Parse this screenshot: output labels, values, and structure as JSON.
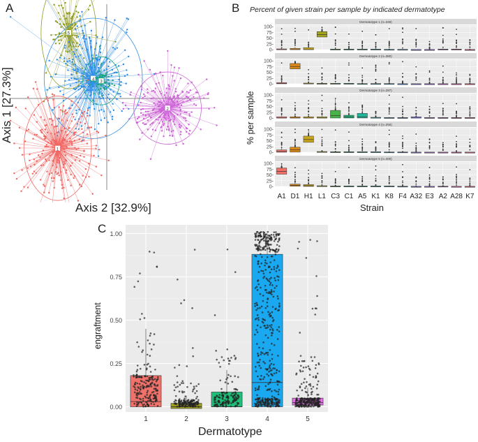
{
  "panels": {
    "a": {
      "letter": "A",
      "xlabel": "Axis 2 [32.9%]",
      "ylabel": "Axis 1 [27.3%]",
      "clusters": [
        {
          "id": "5",
          "color": "#8f9a1e"
        },
        {
          "id": "4",
          "color": "#2e8ee8"
        },
        {
          "id": "3",
          "color": "#1aa678"
        },
        {
          "id": "2",
          "color": "#cc5fd6"
        },
        {
          "id": "1",
          "color": "#ef6460"
        }
      ]
    },
    "b": {
      "letter": "B",
      "title": "Percent of given strain per sample by indicated dermatotype",
      "ylabel": "% per sample",
      "xlabel": "Strain",
      "yticks": [
        "100-",
        "75-",
        "50-",
        "25-",
        "0-"
      ]
    },
    "c": {
      "letter": "C",
      "ylabel": "engraftment",
      "xlabel": "Dermatotype"
    }
  },
  "chart_data": [
    {
      "type": "scatter",
      "xlabel": "Axis 2 [32.9%]",
      "ylabel": "Axis 1 [27.3%]",
      "series": [
        {
          "name": "5",
          "centroid": [
            -0.62,
            0.82
          ],
          "color": "#8f9a1e"
        },
        {
          "name": "4",
          "centroid": [
            -0.22,
            0.25
          ],
          "color": "#2e8ee8"
        },
        {
          "name": "3",
          "centroid": [
            -0.09,
            0.22
          ],
          "color": "#1aa678"
        },
        {
          "name": "2",
          "centroid": [
            0.99,
            -0.12
          ],
          "color": "#cc5fd6"
        },
        {
          "name": "1",
          "centroid": [
            -0.8,
            -0.62
          ],
          "color": "#ef6460"
        }
      ]
    },
    {
      "type": "box",
      "title": "Percent of given strain per sample by indicated dermatotype",
      "xlabel": "Strain",
      "ylabel": "% per sample",
      "ylim": [
        0,
        100
      ],
      "categories": [
        "A1",
        "D1",
        "H1",
        "L1",
        "C3",
        "C1",
        "A5",
        "K1",
        "K8",
        "F4",
        "A32",
        "E3",
        "A2",
        "A28",
        "K7"
      ],
      "colors": [
        "#f07068",
        "#d9891a",
        "#c9a51e",
        "#a3a51c",
        "#49b34a",
        "#22b27b",
        "#1fb59a",
        "#1fb5c1",
        "#23a7d9",
        "#4f8fe0",
        "#7d7be6",
        "#a76de3",
        "#cd61cf",
        "#e25ba8",
        "#f06583"
      ],
      "facets": [
        {
          "label": "Dermatotype 1 (n=349)",
          "medians": [
            0,
            0,
            0,
            65,
            0,
            0,
            0,
            0,
            0,
            0,
            0,
            0,
            0,
            0,
            0
          ],
          "q3": [
            3,
            5,
            8,
            78,
            2,
            2,
            2,
            2,
            1,
            1,
            0,
            0,
            2,
            2,
            0
          ]
        },
        {
          "label": "Dermatotype 2 (n=380)",
          "medians": [
            2,
            75,
            0,
            0,
            0,
            0,
            0,
            0,
            0,
            0,
            0,
            0,
            0,
            0,
            0
          ],
          "q3": [
            5,
            88,
            3,
            2,
            2,
            2,
            1,
            1,
            1,
            0,
            0,
            0,
            0,
            0,
            0
          ]
        },
        {
          "label": "Dermatotype 3 (n=297)",
          "medians": [
            0,
            0,
            0,
            0,
            10,
            5,
            5,
            0,
            0,
            0,
            0,
            0,
            0,
            0,
            0
          ],
          "q3": [
            5,
            5,
            5,
            5,
            33,
            12,
            20,
            3,
            2,
            2,
            5,
            2,
            2,
            2,
            2
          ]
        },
        {
          "label": "Dermatotype 4 (n=256)",
          "medians": [
            3,
            10,
            55,
            0,
            0,
            0,
            0,
            0,
            0,
            0,
            0,
            0,
            0,
            0,
            0
          ],
          "q3": [
            10,
            22,
            70,
            3,
            2,
            2,
            2,
            2,
            1,
            1,
            0,
            0,
            0,
            0,
            0
          ]
        },
        {
          "label": "Dermatotype 5 (n=400)",
          "medians": [
            65,
            5,
            3,
            0,
            0,
            0,
            0,
            0,
            0,
            0,
            0,
            0,
            0,
            0,
            0
          ],
          "q3": [
            80,
            10,
            8,
            3,
            2,
            2,
            2,
            2,
            2,
            1,
            0,
            0,
            1,
            0,
            0
          ]
        }
      ]
    },
    {
      "type": "box",
      "xlabel": "Dermatotype",
      "ylabel": "engraftment",
      "ylim": [
        0,
        1.05
      ],
      "yticks": [
        "0.00",
        "0.25",
        "0.50",
        "0.75",
        "1.00"
      ],
      "categories": [
        "1",
        "2",
        "3",
        "4",
        "5"
      ],
      "colors": [
        "#f0726a",
        "#a0a020",
        "#1fbf7a",
        "#1aa8f0",
        "#e36ee6"
      ],
      "boxes": [
        {
          "q1": 0.0,
          "median": 0.03,
          "q3": 0.18
        },
        {
          "q1": -0.01,
          "median": 0.0,
          "q3": 0.02
        },
        {
          "q1": 0.0,
          "median": 0.0,
          "q3": 0.085
        },
        {
          "q1": 0.0,
          "median": 0.14,
          "q3": 0.88
        },
        {
          "q1": 0.01,
          "median": 0.025,
          "q3": 0.05
        }
      ]
    }
  ]
}
